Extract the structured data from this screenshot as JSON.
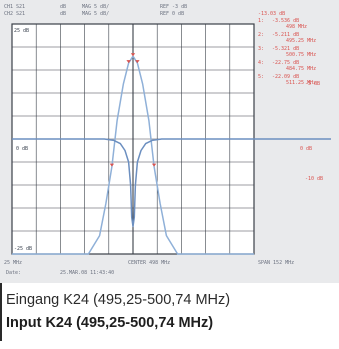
{
  "header": {
    "line1": [
      "CH1 S21",
      "dB",
      "MAG 5 dB/",
      "REF -3 dB"
    ],
    "line2": [
      "CH2 S21",
      "dB",
      "MAG 5 dB/",
      "REF 0 dB"
    ]
  },
  "markers": [
    {
      "id": "1",
      "value": "-3.536 dB",
      "freq": "498 MHz"
    },
    {
      "id": "2",
      "value": "-5.211 dB",
      "freq": "495.25 MHz"
    },
    {
      "id": "3",
      "value": "-5.321 dB",
      "freq": "500.75 MHz"
    },
    {
      "id": "4",
      "value": "-22.75 dB",
      "freq": "484.75 MHz"
    },
    {
      "id": "5",
      "value": "-22.09 dB",
      "freq": "511.25 MHz"
    }
  ],
  "marker_header_value": "-13.03 dB",
  "right_labels": [
    "0 dB",
    "-5 dB",
    "-10 dB"
  ],
  "chart_data": {
    "type": "line",
    "top_label": "25 dB",
    "bottom_label": "-25 dB",
    "left_mid_label": "0 dB",
    "x_start_label": "25 MHz",
    "x_center_label": "CENTER 498 MHz",
    "x_span_label": "SPAN 152 MHz",
    "date_label": "Date:",
    "date_value": "25.MAR.08 11:43:40",
    "xlim": [
      422,
      574
    ],
    "ylim": [
      -25,
      25
    ],
    "grid": true,
    "series": [
      {
        "x": [
          422,
          470,
          477,
          481,
          484.75,
          488,
          492,
          495.25,
          498,
          500.75,
          504,
          508,
          511.25,
          515,
          519,
          526,
          574
        ],
        "y": [
          -25,
          -25,
          -21,
          -14,
          -6,
          4,
          12,
          16.5,
          18,
          16.5,
          12,
          4,
          -6,
          -14,
          -21,
          -25,
          -25
        ]
      },
      {
        "x": [
          422,
          480,
          486,
          490,
          493,
          495.25,
          496.5,
          497.2,
          498,
          498.8,
          499.5,
          500.75,
          503,
          506,
          510,
          516,
          574
        ],
        "y": [
          0,
          0,
          -0.3,
          -1,
          -2.5,
          -5,
          -10,
          -17,
          -19,
          -17,
          -10,
          -5,
          -2.5,
          -1,
          -0.3,
          0,
          0
        ]
      }
    ]
  },
  "caption": {
    "de": "Eingang K24 (495,25-500,74 MHz)",
    "en": "Input K24 (495,25-500,74 MHz)"
  }
}
